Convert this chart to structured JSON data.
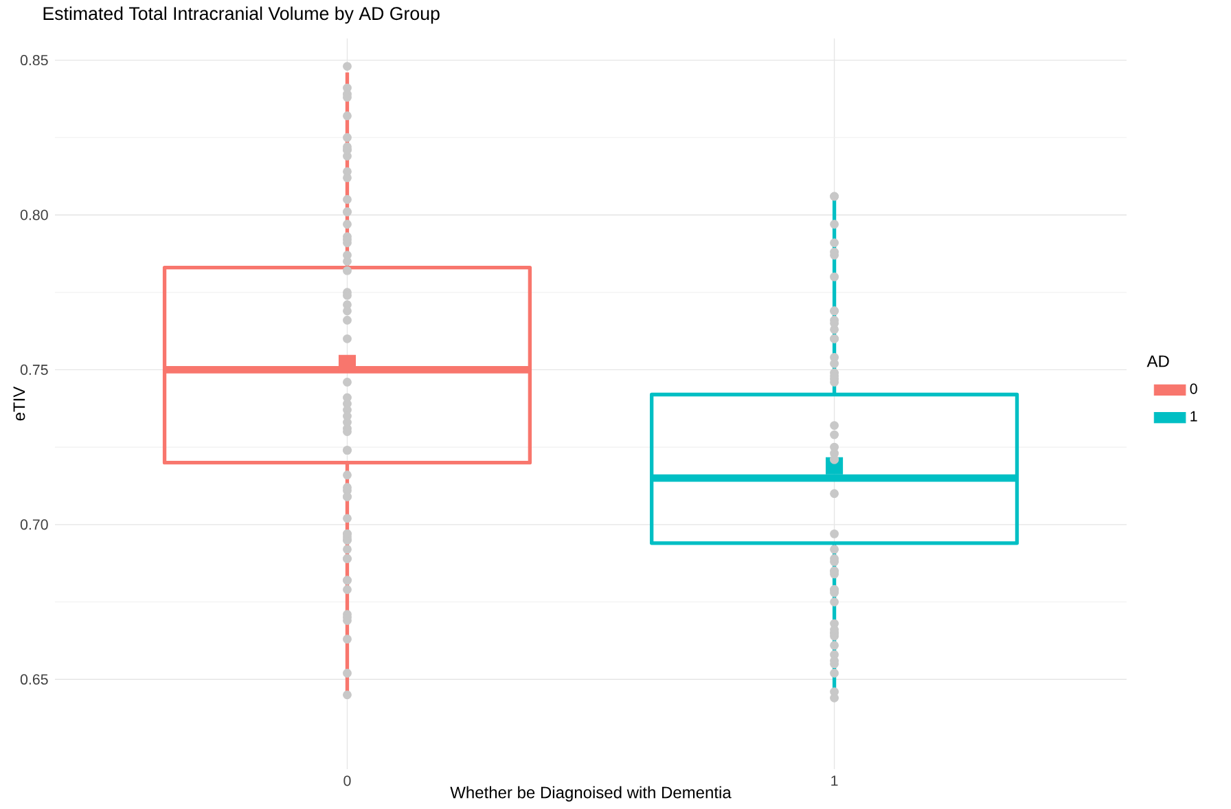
{
  "chart_data": {
    "type": "box",
    "title": "Estimated Total Intracranial Volume by AD Group",
    "xlabel": "Whether be Diagnoised with Dementia",
    "ylabel": "eTIV",
    "legend_title": "AD",
    "categories": [
      "0",
      "1"
    ],
    "series": [
      {
        "name": "0",
        "color": "#f8766d",
        "boxes": [
          {
            "low": 0.644,
            "q1": 0.72,
            "median": 0.75,
            "q3": 0.783,
            "high": 0.846,
            "mean": 0.752
          },
          null
        ]
      },
      {
        "name": "1",
        "color": "#00bfc4",
        "boxes": [
          null,
          {
            "low": 0.644,
            "q1": 0.694,
            "median": 0.715,
            "q3": 0.742,
            "high": 0.805,
            "mean": 0.719
          }
        ]
      },
      {
        "type": "scatter",
        "color": "#c8c8c8",
        "x": [
          "0",
          "0",
          "0",
          "0",
          "0",
          "0",
          "0",
          "0",
          "0",
          "0",
          "0",
          "0",
          "0",
          "0",
          "0",
          "0",
          "0",
          "0",
          "0",
          "0",
          "0",
          "0",
          "0",
          "0",
          "0",
          "0",
          "0",
          "0",
          "0",
          "0",
          "0",
          "0",
          "0",
          "0",
          "0",
          "0",
          "0",
          "0",
          "0",
          "0",
          "0",
          "0",
          "0",
          "0",
          "0",
          "0",
          "0",
          "0",
          "0",
          "0",
          "0",
          "0",
          "0",
          "0",
          "0",
          "0",
          "0",
          "0",
          "0",
          "0",
          "0",
          "1",
          "1",
          "1",
          "1",
          "1",
          "1",
          "1",
          "1",
          "1",
          "1",
          "1",
          "1",
          "1",
          "1",
          "1",
          "1",
          "1",
          "1",
          "1",
          "1",
          "1",
          "1",
          "1",
          "1",
          "1",
          "1",
          "1",
          "1",
          "1",
          "1",
          "1",
          "1",
          "1",
          "1",
          "1",
          "1",
          "1",
          "1",
          "1",
          "1",
          "1",
          "1",
          "1",
          "1",
          "1",
          "1",
          "1",
          "1",
          "1",
          "1"
        ],
        "values": [
          0.841,
          0.839,
          0.825,
          0.832,
          0.838,
          0.848,
          0.819,
          0.822,
          0.814,
          0.821,
          0.821,
          0.801,
          0.805,
          0.812,
          0.801,
          0.791,
          0.793,
          0.792,
          0.787,
          0.797,
          0.782,
          0.785,
          0.775,
          0.774,
          0.766,
          0.771,
          0.769,
          0.76,
          0.746,
          0.739,
          0.737,
          0.741,
          0.735,
          0.731,
          0.733,
          0.724,
          0.724,
          0.73,
          0.712,
          0.709,
          0.716,
          0.696,
          0.711,
          0.702,
          0.695,
          0.692,
          0.709,
          0.695,
          0.689,
          0.697,
          0.682,
          0.682,
          0.697,
          0.689,
          0.679,
          0.671,
          0.669,
          0.663,
          0.652,
          0.645,
          0.67,
          0.806,
          0.797,
          0.787,
          0.806,
          0.791,
          0.788,
          0.78,
          0.769,
          0.769,
          0.76,
          0.766,
          0.747,
          0.749,
          0.763,
          0.754,
          0.765,
          0.76,
          0.748,
          0.746,
          0.752,
          0.732,
          0.723,
          0.71,
          0.697,
          0.721,
          0.721,
          0.725,
          0.729,
          0.684,
          0.685,
          0.688,
          0.692,
          0.685,
          0.689,
          0.675,
          0.668,
          0.679,
          0.678,
          0.664,
          0.665,
          0.658,
          0.665,
          0.666,
          0.679,
          0.655,
          0.656,
          0.661,
          0.652,
          0.646,
          0.644
        ]
      }
    ],
    "ylim": [
      0.621,
      0.857
    ],
    "yticks": [
      0.65,
      {
        "value": 0.7,
        "label": "0.70"
      },
      0.75,
      {
        "value": 0.8,
        "label": "0.80"
      },
      0.85
    ],
    "grid": true,
    "legend": "right"
  }
}
